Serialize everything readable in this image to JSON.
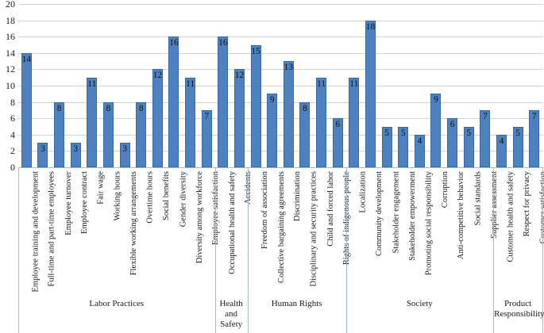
{
  "chart_data": {
    "type": "bar",
    "title": "",
    "xlabel": "",
    "ylabel": "",
    "ylim": [
      0,
      20
    ],
    "yticks": [
      0,
      2,
      4,
      6,
      8,
      10,
      12,
      14,
      16,
      18,
      20
    ],
    "grid": true,
    "legend": false,
    "data_labels": "inside-end",
    "colors": {
      "bar_fill": "#4d81c0",
      "bar_border": "#3a68a6",
      "gridline": "#d2d2d2",
      "axis_line": "#9fbbd9",
      "text": "#1a1a1a"
    },
    "groups": [
      {
        "name": "Labor Practices",
        "items": [
          {
            "label": "Employee training and development",
            "value": 14
          },
          {
            "label": "Full-time and part-time employees",
            "value": 3
          },
          {
            "label": "Employee turnover",
            "value": 8
          },
          {
            "label": "Employee contract",
            "value": 3
          },
          {
            "label": "Fair wage",
            "value": 11
          },
          {
            "label": "Working hours",
            "value": 8
          },
          {
            "label": "Flexible working arrangements",
            "value": 3
          },
          {
            "label": "Overtime hours",
            "value": 8
          },
          {
            "label": "Social benefits",
            "value": 12
          },
          {
            "label": "Gender diversity",
            "value": 16
          },
          {
            "label": "Diversity among workforce",
            "value": 11
          },
          {
            "label": "Employee satisfaction",
            "value": 7
          }
        ]
      },
      {
        "name": "Health and Safety",
        "items": [
          {
            "label": "Occupational health and safety",
            "value": 16
          },
          {
            "label": "Accidents",
            "value": 12
          }
        ]
      },
      {
        "name": "Human Rights",
        "items": [
          {
            "label": "Freedom of association",
            "value": 15
          },
          {
            "label": "Collective bargaining agreements",
            "value": 9
          },
          {
            "label": "Discrimination",
            "value": 13
          },
          {
            "label": "Disciplinary and security practices",
            "value": 8
          },
          {
            "label": "Child and forced labor",
            "value": 11
          },
          {
            "label": "Rights of indigenous people",
            "value": 6
          }
        ]
      },
      {
        "name": "Society",
        "items": [
          {
            "label": "Localization",
            "value": 11
          },
          {
            "label": "Community development",
            "value": 18
          },
          {
            "label": "Stakeholder engagement",
            "value": 5
          },
          {
            "label": "Stakeholder empowerment",
            "value": 5
          },
          {
            "label": "Promoting social responsibility",
            "value": 4
          },
          {
            "label": "Corruption",
            "value": 9
          },
          {
            "label": "Anti-competitive behavior",
            "value": 6
          },
          {
            "label": "Social standards",
            "value": 5
          },
          {
            "label": "Supplier assessment",
            "value": 7
          }
        ]
      },
      {
        "name": "Product Responsibility",
        "items": [
          {
            "label": "Customer health and safety",
            "value": 4
          },
          {
            "label": "Respect for privacy",
            "value": 5
          },
          {
            "label": "Customer satisfaction",
            "value": 7
          }
        ]
      }
    ]
  }
}
